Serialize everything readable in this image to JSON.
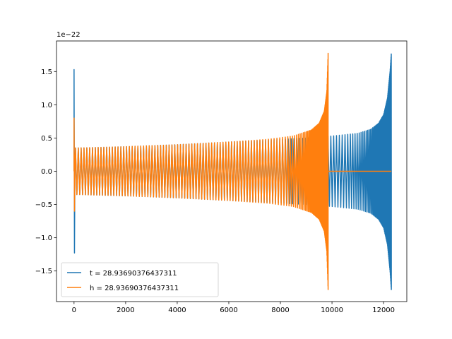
{
  "chart_data": {
    "type": "line",
    "title": "",
    "xlabel": "",
    "ylabel": "",
    "y_offset_text": "1e−22",
    "xlim": [
      -680,
      12900
    ],
    "ylim": [
      -1.96,
      1.96
    ],
    "x_ticks": [
      0,
      2000,
      4000,
      6000,
      8000,
      10000,
      12000
    ],
    "x_tick_labels": [
      "0",
      "2000",
      "4000",
      "6000",
      "8000",
      "10000",
      "12000"
    ],
    "y_ticks": [
      -1.5,
      -1.0,
      -0.5,
      0.0,
      0.5,
      1.0,
      1.5
    ],
    "y_tick_labels": [
      "−1.5",
      "−1.0",
      "−0.5",
      "0.0",
      "0.5",
      "1.0",
      "1.5"
    ],
    "grid": false,
    "legend_position": "lower-left",
    "series": [
      {
        "name": "t = 28.93690376437311",
        "color": "#1f77b4",
        "envelope": {
          "x": [
            0,
            300,
            2000,
            4000,
            6000,
            8000,
            9000,
            10000,
            11000,
            11500,
            11800,
            12000,
            12150,
            12250,
            12300
          ],
          "amp": [
            0.35,
            0.35,
            0.37,
            0.4,
            0.44,
            0.48,
            0.5,
            0.53,
            0.57,
            0.63,
            0.72,
            0.85,
            1.1,
            1.5,
            1.78
          ]
        },
        "x_start": 0,
        "x_end": 12300,
        "initial_spike": {
          "x": 0,
          "max": 1.53,
          "min": -1.23
        }
      },
      {
        "name": "h = 28.93690376437311",
        "color": "#ff7f0e",
        "envelope": {
          "x": [
            0,
            2000,
            4000,
            6000,
            7500,
            8500,
            9200,
            9500,
            9700,
            9800,
            9850
          ],
          "amp": [
            0.35,
            0.37,
            0.4,
            0.44,
            0.48,
            0.53,
            0.62,
            0.72,
            0.9,
            1.2,
            1.78
          ]
        },
        "x_start": 0,
        "x_end": 9850,
        "flat_after": [
          9850,
          12300
        ],
        "initial_spike": {
          "x": 0,
          "max": 0.8,
          "min": -0.6
        }
      }
    ]
  }
}
